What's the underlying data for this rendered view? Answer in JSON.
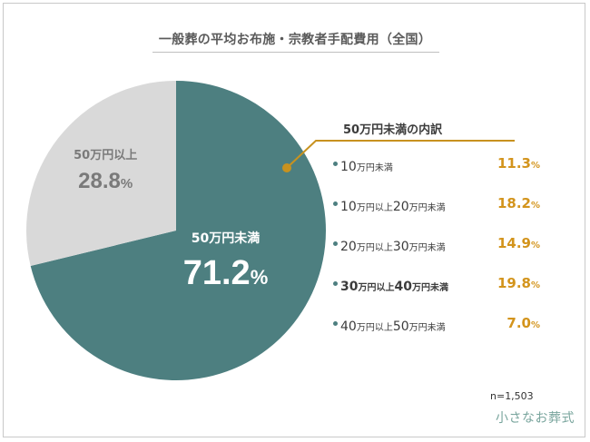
{
  "title": "一般葬の平均お布施・宗教者手配費用（全国）",
  "chart_data": {
    "type": "pie",
    "slices": [
      {
        "label": "50万円未満",
        "value": 71.2,
        "display": "71.2",
        "color": "#4d7f80"
      },
      {
        "label": "50万円以上",
        "value": 28.8,
        "display": "28.8",
        "color": "#d9d9d9"
      }
    ],
    "percent_unit": "%",
    "breakdown": {
      "title": "50万円未満の内訳",
      "items": [
        {
          "parts": [
            {
              "t": "10",
              "n": true
            },
            {
              "t": "万円未満",
              "n": false
            }
          ],
          "value": 11.3,
          "display": "11.3",
          "bold": false
        },
        {
          "parts": [
            {
              "t": "10",
              "n": true
            },
            {
              "t": "万円以上",
              "n": false
            },
            {
              "t": "20",
              "n": true
            },
            {
              "t": "万円未満",
              "n": false
            }
          ],
          "value": 18.2,
          "display": "18.2",
          "bold": false
        },
        {
          "parts": [
            {
              "t": "20",
              "n": true
            },
            {
              "t": "万円以上",
              "n": false
            },
            {
              "t": "30",
              "n": true
            },
            {
              "t": "万円未満",
              "n": false
            }
          ],
          "value": 14.9,
          "display": "14.9",
          "bold": false
        },
        {
          "parts": [
            {
              "t": "30",
              "n": true
            },
            {
              "t": "万円以上",
              "n": false
            },
            {
              "t": "40",
              "n": true
            },
            {
              "t": "万円未満",
              "n": false
            }
          ],
          "value": 19.8,
          "display": "19.8",
          "bold": true
        },
        {
          "parts": [
            {
              "t": "40",
              "n": true
            },
            {
              "t": "万円以上",
              "n": false
            },
            {
              "t": "50",
              "n": true
            },
            {
              "t": "万円未満",
              "n": false
            }
          ],
          "value": 7.0,
          "display": "7.0",
          "bold": false
        }
      ]
    },
    "callout_color": "#c8921f"
  },
  "sample_size": "n=1,503",
  "logo": "小さなお葬式"
}
